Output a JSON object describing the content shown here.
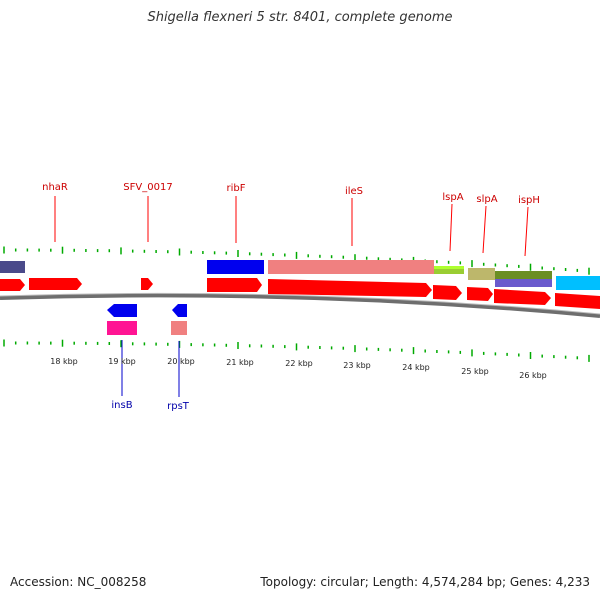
{
  "title": "Shigella flexneri 5 str. 8401, complete genome",
  "accession_text": "Accession: NC_008258",
  "summary_text": "Topology: circular; Length: 4,574,284 bp; Genes: 4,233",
  "colors": {
    "forward_gene": "#ff0000",
    "reverse_gene": "#0000ff",
    "backbone": "#888888",
    "tick": "#00aa00"
  },
  "forward_labels": [
    "nhaR",
    "SFV_0017",
    "ribF",
    "ileS",
    "lspA",
    "slpA",
    "ispH"
  ],
  "reverse_labels": [
    "insB",
    "rpsT"
  ],
  "axis_ticks": [
    "18 kbp",
    "19 kbp",
    "20 kbp",
    "21 kbp",
    "22 kbp",
    "23 kbp",
    "24 kbp",
    "25 kbp",
    "26 kbp"
  ]
}
